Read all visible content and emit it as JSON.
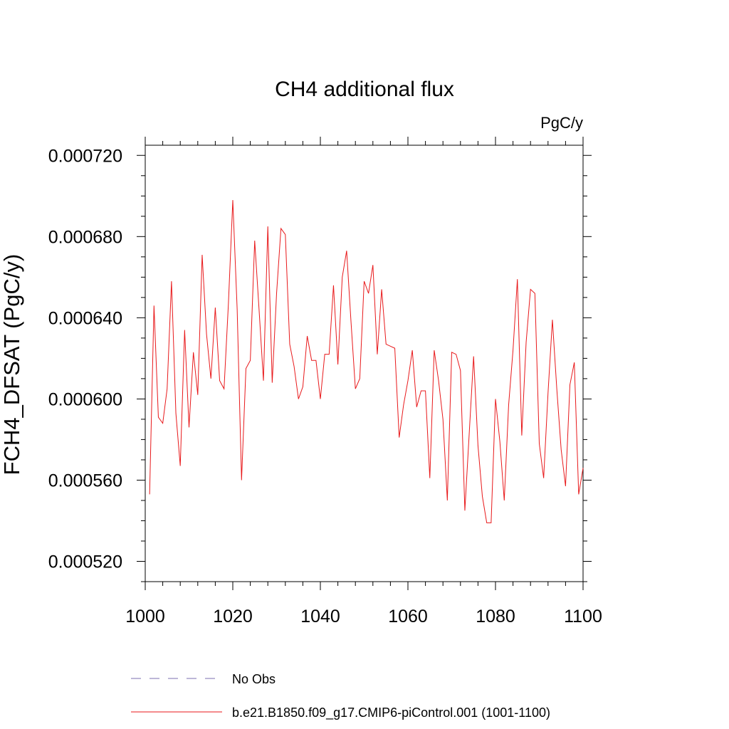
{
  "chart_data": {
    "type": "line",
    "title": "CH4 additional flux",
    "units": "PgC/y",
    "xlabel": "",
    "ylabel": "FCH4_DFSAT  (PgC/y)",
    "xlim": [
      1000,
      1100
    ],
    "ylim": [
      0.00051,
      0.000725
    ],
    "x_ticks": [
      1000,
      1020,
      1040,
      1060,
      1080,
      1100
    ],
    "x_tick_labels": [
      "1000",
      "1020",
      "1040",
      "1060",
      "1080",
      "1100"
    ],
    "y_ticks": [
      0.00052,
      0.00056,
      0.0006,
      0.00064,
      0.00068,
      0.00072
    ],
    "y_tick_labels": [
      "0.000520",
      "0.000560",
      "0.000600",
      "0.000640",
      "0.000680",
      "0.000720"
    ],
    "grid": false,
    "legend": "bottom",
    "series": [
      {
        "name": "No Obs",
        "color": "#7b6fb0",
        "dash": "dashed",
        "x": [],
        "values": []
      },
      {
        "name": "b.e21.B1850.f09_g17.CMIP6-piControl.001 (1001-1100)",
        "color": "#e8191b",
        "dash": "solid",
        "x": [
          1001,
          1002,
          1003,
          1004,
          1005,
          1006,
          1007,
          1008,
          1009,
          1010,
          1011,
          1012,
          1013,
          1014,
          1015,
          1016,
          1017,
          1018,
          1019,
          1020,
          1021,
          1022,
          1023,
          1024,
          1025,
          1026,
          1027,
          1028,
          1029,
          1030,
          1031,
          1032,
          1033,
          1034,
          1035,
          1036,
          1037,
          1038,
          1039,
          1040,
          1041,
          1042,
          1043,
          1044,
          1045,
          1046,
          1047,
          1048,
          1049,
          1050,
          1051,
          1052,
          1053,
          1054,
          1055,
          1056,
          1057,
          1058,
          1059,
          1060,
          1061,
          1062,
          1063,
          1064,
          1065,
          1066,
          1067,
          1068,
          1069,
          1070,
          1071,
          1072,
          1073,
          1074,
          1075,
          1076,
          1077,
          1078,
          1079,
          1080,
          1081,
          1082,
          1083,
          1084,
          1085,
          1086,
          1087,
          1088,
          1089,
          1090,
          1091,
          1092,
          1093,
          1094,
          1095,
          1096,
          1097,
          1098,
          1099,
          1100
        ],
        "values": [
          0.000553,
          0.000646,
          0.000591,
          0.000588,
          0.000605,
          0.000658,
          0.000593,
          0.000567,
          0.000634,
          0.000586,
          0.000623,
          0.000602,
          0.000671,
          0.000632,
          0.00061,
          0.000645,
          0.000609,
          0.000605,
          0.000647,
          0.000698,
          0.000644,
          0.00056,
          0.000615,
          0.000619,
          0.000678,
          0.000644,
          0.000609,
          0.000685,
          0.000608,
          0.000652,
          0.000684,
          0.000681,
          0.000627,
          0.000616,
          0.0006,
          0.000606,
          0.000631,
          0.000619,
          0.000619,
          0.0006,
          0.000622,
          0.000622,
          0.000656,
          0.000617,
          0.00066,
          0.000673,
          0.000638,
          0.000605,
          0.00061,
          0.000658,
          0.000652,
          0.000666,
          0.000622,
          0.000654,
          0.000627,
          0.000626,
          0.000625,
          0.000581,
          0.000597,
          0.000609,
          0.000624,
          0.000596,
          0.000604,
          0.000604,
          0.000561,
          0.000624,
          0.000609,
          0.00059,
          0.00055,
          0.000623,
          0.000622,
          0.000614,
          0.000545,
          0.000583,
          0.000621,
          0.000577,
          0.000552,
          0.000539,
          0.000539,
          0.0006,
          0.000579,
          0.00055,
          0.000597,
          0.000624,
          0.000659,
          0.000582,
          0.000628,
          0.000654,
          0.000652,
          0.000578,
          0.000561,
          0.000603,
          0.000639,
          0.000605,
          0.000575,
          0.000557,
          0.000607,
          0.000618,
          0.000553,
          0.000566
        ]
      }
    ]
  }
}
